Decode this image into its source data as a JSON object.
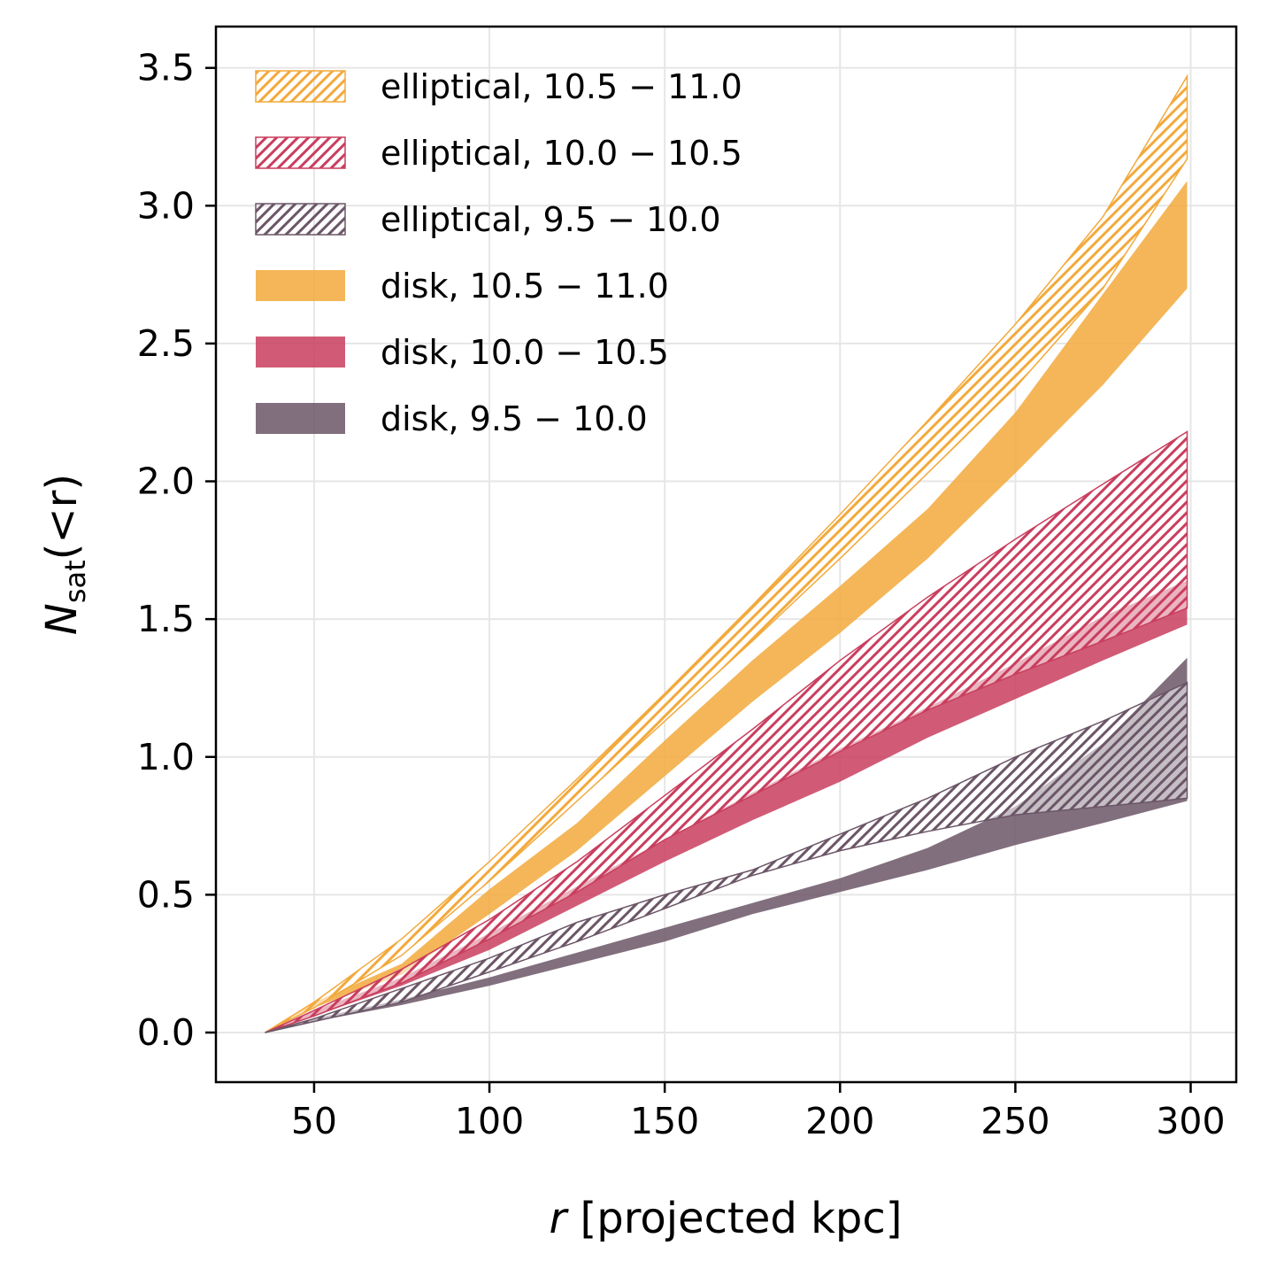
{
  "chart_data": {
    "type": "area",
    "xlabel_var": "r",
    "xlabel_rest": " [projected kpc]",
    "ylabel_var": "N",
    "ylabel_sub": "sat",
    "ylabel_rest": "(<r)",
    "xlim": [
      22,
      313
    ],
    "ylim": [
      -0.18,
      3.65
    ],
    "xticks": [
      50,
      100,
      150,
      200,
      250,
      300
    ],
    "xtick_labels": [
      "50",
      "100",
      "150",
      "200",
      "250",
      "300"
    ],
    "yticks": [
      0.0,
      0.5,
      1.0,
      1.5,
      2.0,
      2.5,
      3.0,
      3.5
    ],
    "ytick_labels": [
      "0.0",
      "0.5",
      "1.0",
      "1.5",
      "2.0",
      "2.5",
      "3.0",
      "3.5"
    ],
    "grid": true,
    "legend_position": "top-left",
    "x": [
      36,
      50,
      75,
      100,
      125,
      150,
      175,
      200,
      225,
      250,
      275,
      299
    ],
    "series": [
      {
        "name": "elliptical, 10.5 − 11.0",
        "color": "#f2a93b",
        "style": "hatched",
        "lower": [
          0.0,
          0.09,
          0.28,
          0.55,
          0.84,
          1.13,
          1.42,
          1.72,
          2.03,
          2.34,
          2.7,
          3.17
        ],
        "upper": [
          0.0,
          0.11,
          0.34,
          0.62,
          0.92,
          1.23,
          1.55,
          1.88,
          2.22,
          2.57,
          2.96,
          3.47
        ]
      },
      {
        "name": "elliptical, 10.0 − 10.5",
        "color": "#c93e5e",
        "style": "hatched",
        "lower": [
          0.0,
          0.06,
          0.18,
          0.34,
          0.51,
          0.7,
          0.86,
          1.02,
          1.17,
          1.3,
          1.42,
          1.54
        ],
        "upper": [
          0.0,
          0.08,
          0.23,
          0.41,
          0.62,
          0.86,
          1.1,
          1.35,
          1.58,
          1.79,
          1.99,
          2.18
        ]
      },
      {
        "name": "elliptical, 9.5 − 10.0",
        "color": "#6b5667",
        "style": "hatched",
        "lower": [
          0.0,
          0.04,
          0.11,
          0.22,
          0.33,
          0.45,
          0.57,
          0.66,
          0.73,
          0.79,
          0.82,
          0.85
        ],
        "upper": [
          0.0,
          0.05,
          0.16,
          0.27,
          0.4,
          0.5,
          0.59,
          0.72,
          0.85,
          1.0,
          1.13,
          1.27
        ]
      },
      {
        "name": "disk, 10.5 − 11.0",
        "color": "#f2a93b",
        "style": "solid",
        "lower": [
          0.0,
          0.09,
          0.21,
          0.43,
          0.66,
          0.93,
          1.2,
          1.45,
          1.72,
          2.03,
          2.35,
          2.7
        ],
        "upper": [
          0.0,
          0.11,
          0.25,
          0.52,
          0.76,
          1.06,
          1.35,
          1.62,
          1.9,
          2.25,
          2.68,
          3.09
        ]
      },
      {
        "name": "disk, 10.0 − 10.5",
        "color": "#c93e5e",
        "style": "solid",
        "lower": [
          0.0,
          0.06,
          0.17,
          0.3,
          0.46,
          0.62,
          0.77,
          0.91,
          1.07,
          1.21,
          1.35,
          1.48
        ],
        "upper": [
          0.0,
          0.08,
          0.2,
          0.36,
          0.53,
          0.7,
          0.87,
          1.03,
          1.18,
          1.34,
          1.51,
          1.64
        ]
      },
      {
        "name": "disk, 9.5 − 10.0",
        "color": "#6b5667",
        "style": "solid",
        "lower": [
          0.0,
          0.04,
          0.1,
          0.17,
          0.25,
          0.33,
          0.43,
          0.51,
          0.59,
          0.68,
          0.76,
          0.84
        ],
        "upper": [
          0.0,
          0.05,
          0.12,
          0.2,
          0.29,
          0.38,
          0.47,
          0.56,
          0.67,
          0.82,
          1.05,
          1.36
        ]
      }
    ]
  }
}
